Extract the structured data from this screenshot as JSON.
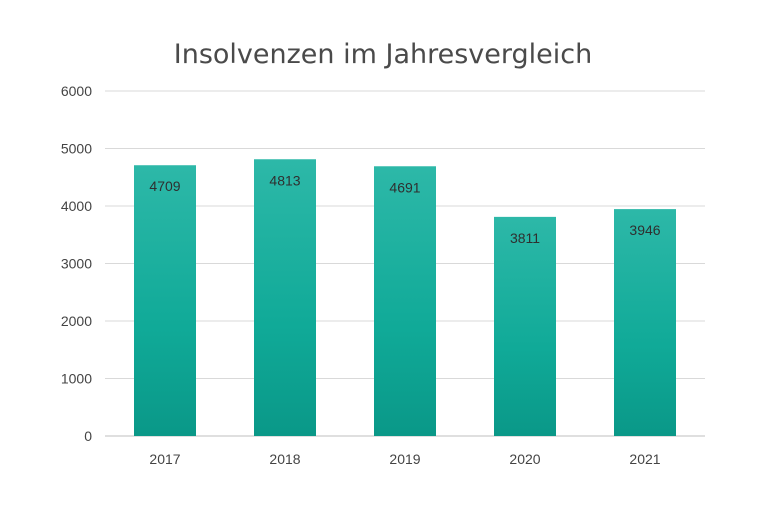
{
  "chart_data": {
    "type": "bar",
    "title": "Insolvenzen im Jahresvergleich",
    "categories": [
      "2017",
      "2018",
      "2019",
      "2020",
      "2021"
    ],
    "values": [
      4709,
      4813,
      4691,
      3811,
      3946
    ],
    "data_labels": [
      "4709",
      "4813",
      "4691",
      "3811",
      "3946"
    ],
    "yticks": [
      "0",
      "1000",
      "2000",
      "3000",
      "4000",
      "5000",
      "6000"
    ],
    "ylim": [
      0,
      6000
    ],
    "xlabel": "",
    "ylabel": "",
    "grid": true,
    "legend": "none",
    "colors": {
      "bar_top": "#2db8a8",
      "bar_mid": "#10aa98",
      "bar_bottom": "#0a9888"
    }
  }
}
